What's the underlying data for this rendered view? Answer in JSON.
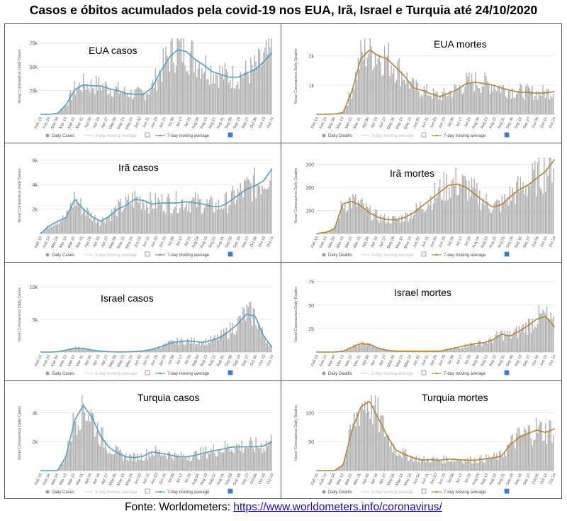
{
  "title": "Casos e óbitos acumulados pela covid-19 nos EUA, Irã, Israel e Turquia até 24/10/2020",
  "source": {
    "prefix": "Fonte: Worldometers: ",
    "link_text": "https://www.worldometers.info/coronavirus/"
  },
  "colors": {
    "bar": "#b0b0b0",
    "cases_line": "#4aa3c8",
    "deaths_line": "#b8862b",
    "axis_text": "#555555",
    "grid": "#e6e6e6"
  },
  "legend": {
    "daily_cases": "Daily Cases",
    "daily_deaths": "Daily Deaths",
    "ma3": "3-day moving average",
    "ma7": "7-day moving average"
  },
  "x_tick_labels": [
    "Feb 15",
    "Feb 24",
    "Mar 04",
    "Mar 13",
    "Mar 22",
    "Mar 31",
    "Apr 09",
    "Apr 18",
    "Apr 27",
    "May 06",
    "May 15",
    "May 24",
    "Jun 02",
    "Jun 11",
    "Jun 20",
    "Jun 29",
    "Jul 08",
    "Jul 17",
    "Jul 26",
    "Aug 04",
    "Aug 13",
    "Aug 22",
    "Aug 31",
    "Sep 09",
    "Sep 18",
    "Sep 27",
    "Oct 06",
    "Oct 15",
    "Oct 24"
  ],
  "chart_data": [
    {
      "type": "bar",
      "title": "EUA casos",
      "ylabel": "Novel Coronavirus Daily Cases",
      "ylim": [
        0,
        80000
      ],
      "y_ticks": [
        "25k",
        "50k",
        "75k"
      ],
      "y_tick_values": [
        25000,
        50000,
        75000
      ],
      "x": [
        "Feb 15",
        "Mar 04",
        "Mar 13",
        "Mar 22",
        "Mar 31",
        "Apr 09",
        "Apr 18",
        "Apr 27",
        "May 06",
        "May 15",
        "May 24",
        "Jun 02",
        "Jun 11",
        "Jun 20",
        "Jun 29",
        "Jul 08",
        "Jul 17",
        "Jul 26",
        "Aug 04",
        "Aug 13",
        "Aug 22",
        "Aug 31",
        "Sep 09",
        "Sep 18",
        "Sep 27",
        "Oct 06",
        "Oct 15",
        "Oct 24"
      ],
      "series": [
        {
          "name": "7-day moving average",
          "values": [
            0,
            0,
            1000,
            10000,
            26000,
            31000,
            30000,
            30000,
            27000,
            25000,
            22000,
            21000,
            21000,
            28000,
            45000,
            60000,
            68000,
            66000,
            58000,
            52000,
            45000,
            42000,
            39000,
            39000,
            43000,
            47000,
            55000,
            65000
          ]
        }
      ]
    },
    {
      "type": "bar",
      "title": "EUA mortes",
      "ylabel": "Novel Coronavirus Daily Deaths",
      "ylim": [
        0,
        2600
      ],
      "y_ticks": [
        "1k",
        "2k"
      ],
      "y_tick_values": [
        1000,
        2000
      ],
      "x": [
        "Feb 15",
        "Mar 04",
        "Mar 13",
        "Mar 22",
        "Mar 31",
        "Apr 09",
        "Apr 18",
        "Apr 27",
        "May 06",
        "May 15",
        "May 24",
        "Jun 02",
        "Jun 11",
        "Jun 20",
        "Jun 29",
        "Jul 08",
        "Jul 17",
        "Jul 26",
        "Aug 04",
        "Aug 13",
        "Aug 22",
        "Aug 31",
        "Sep 09",
        "Sep 18",
        "Sep 27",
        "Oct 06",
        "Oct 15",
        "Oct 24"
      ],
      "series": [
        {
          "name": "7-day moving average",
          "values": [
            0,
            0,
            10,
            60,
            800,
            1900,
            2200,
            2000,
            1900,
            1600,
            1300,
            900,
            820,
            700,
            600,
            720,
            850,
            1050,
            1100,
            1050,
            1000,
            900,
            820,
            760,
            750,
            720,
            730,
            780
          ]
        }
      ]
    },
    {
      "type": "bar",
      "title": "Irã casos",
      "ylabel": "Novel Coronavirus Daily Cases",
      "ylim": [
        0,
        6200
      ],
      "y_ticks": [
        "2k",
        "4k",
        "6k"
      ],
      "y_tick_values": [
        2000,
        4000,
        6000
      ],
      "x": [
        "Feb 15",
        "Mar 04",
        "Mar 13",
        "Mar 22",
        "Mar 31",
        "Apr 09",
        "Apr 18",
        "Apr 27",
        "May 06",
        "May 15",
        "May 24",
        "Jun 02",
        "Jun 11",
        "Jun 20",
        "Jun 29",
        "Jul 08",
        "Jul 17",
        "Jul 26",
        "Aug 04",
        "Aug 13",
        "Aug 22",
        "Aug 31",
        "Sep 09",
        "Sep 18",
        "Sep 27",
        "Oct 06",
        "Oct 15",
        "Oct 24"
      ],
      "series": [
        {
          "name": "7-day moving average",
          "values": [
            0,
            600,
            1000,
            1300,
            2800,
            2000,
            1400,
            1000,
            1400,
            2000,
            2300,
            2800,
            2700,
            2400,
            2500,
            2500,
            2500,
            2600,
            2500,
            2400,
            2200,
            2200,
            2600,
            3100,
            3600,
            3900,
            4300,
            5300
          ]
        }
      ]
    },
    {
      "type": "bar",
      "title": "Irã mortes",
      "ylabel": "Novel Coronavirus Daily Deaths",
      "ylim": [
        0,
        330
      ],
      "y_ticks": [
        "100",
        "200",
        "300"
      ],
      "y_tick_values": [
        100,
        200,
        300
      ],
      "x": [
        "Feb 15",
        "Mar 04",
        "Mar 13",
        "Mar 22",
        "Mar 31",
        "Apr 09",
        "Apr 18",
        "Apr 27",
        "May 06",
        "May 15",
        "May 24",
        "Jun 02",
        "Jun 11",
        "Jun 20",
        "Jun 29",
        "Jul 08",
        "Jul 17",
        "Jul 26",
        "Aug 04",
        "Aug 13",
        "Aug 22",
        "Aug 31",
        "Sep 09",
        "Sep 18",
        "Sep 27",
        "Oct 06",
        "Oct 15",
        "Oct 24"
      ],
      "series": [
        {
          "name": "7-day moving average",
          "values": [
            0,
            5,
            20,
            130,
            140,
            120,
            90,
            70,
            60,
            60,
            70,
            90,
            120,
            150,
            180,
            210,
            215,
            200,
            170,
            140,
            115,
            125,
            160,
            190,
            210,
            240,
            270,
            320
          ]
        }
      ]
    },
    {
      "type": "bar",
      "title": "Israel casos",
      "ylabel": "Novel Coronavirus Daily Cases",
      "ylim": [
        0,
        11500
      ],
      "y_ticks": [
        "5k",
        "10k"
      ],
      "y_tick_values": [
        5000,
        10000
      ],
      "x": [
        "Feb 15",
        "Mar 04",
        "Mar 13",
        "Mar 22",
        "Mar 31",
        "Apr 09",
        "Apr 18",
        "Apr 27",
        "May 06",
        "May 15",
        "May 24",
        "Jun 02",
        "Jun 11",
        "Jun 20",
        "Jun 29",
        "Jul 08",
        "Jul 17",
        "Jul 26",
        "Aug 04",
        "Aug 13",
        "Aug 22",
        "Aug 31",
        "Sep 09",
        "Sep 18",
        "Sep 27",
        "Oct 06",
        "Oct 15",
        "Oct 24"
      ],
      "series": [
        {
          "name": "7-day moving average",
          "values": [
            0,
            0,
            50,
            300,
            600,
            550,
            300,
            150,
            50,
            20,
            20,
            80,
            200,
            400,
            800,
            1300,
            1600,
            1700,
            1600,
            1500,
            1800,
            2300,
            3200,
            4300,
            5800,
            5500,
            2500,
            700
          ]
        }
      ]
    },
    {
      "type": "bar",
      "title": "Israel mortes",
      "ylabel": "Novel Coronavirus Daily Deaths",
      "ylim": [
        0,
        80
      ],
      "y_ticks": [
        "25",
        "50",
        "75"
      ],
      "y_tick_values": [
        25,
        50,
        75
      ],
      "x": [
        "Feb 15",
        "Mar 04",
        "Mar 13",
        "Mar 22",
        "Mar 31",
        "Apr 09",
        "Apr 18",
        "Apr 27",
        "May 06",
        "May 15",
        "May 24",
        "Jun 02",
        "Jun 11",
        "Jun 20",
        "Jun 29",
        "Jul 08",
        "Jul 17",
        "Jul 26",
        "Aug 04",
        "Aug 13",
        "Aug 22",
        "Aug 31",
        "Sep 09",
        "Sep 18",
        "Sep 27",
        "Oct 06",
        "Oct 15",
        "Oct 24"
      ],
      "series": [
        {
          "name": "7-day moving average",
          "values": [
            0,
            0,
            0,
            1,
            5,
            9,
            8,
            4,
            2,
            1,
            1,
            1,
            1,
            1,
            1,
            3,
            5,
            7,
            9,
            10,
            13,
            19,
            17,
            22,
            28,
            35,
            38,
            27
          ]
        }
      ]
    },
    {
      "type": "bar",
      "title": "Turquia casos",
      "ylabel": "Novel Coronavirus Daily Cases",
      "ylim": [
        0,
        5200
      ],
      "y_ticks": [
        "2k",
        "4k"
      ],
      "y_tick_values": [
        2000,
        4000
      ],
      "x": [
        "Feb 15",
        "Mar 04",
        "Mar 13",
        "Mar 22",
        "Mar 31",
        "Apr 09",
        "Apr 18",
        "Apr 27",
        "May 06",
        "May 15",
        "May 24",
        "Jun 02",
        "Jun 11",
        "Jun 20",
        "Jun 29",
        "Jul 08",
        "Jul 17",
        "Jul 26",
        "Aug 04",
        "Aug 13",
        "Aug 22",
        "Aug 31",
        "Sep 09",
        "Sep 18",
        "Sep 27",
        "Oct 06",
        "Oct 15",
        "Oct 24"
      ],
      "series": [
        {
          "name": "7-day moving average",
          "values": [
            0,
            0,
            0,
            1000,
            3500,
            4500,
            3700,
            2400,
            1600,
            1200,
            950,
            900,
            1000,
            1300,
            1200,
            1100,
            950,
            950,
            1050,
            1200,
            1350,
            1450,
            1600,
            1650,
            1650,
            1650,
            1700,
            2000
          ]
        }
      ]
    },
    {
      "type": "bar",
      "title": "Turquia mortes",
      "ylabel": "Novel Coronavirus Daily Deaths",
      "ylim": [
        0,
        130
      ],
      "y_ticks": [
        "50",
        "100"
      ],
      "y_tick_values": [
        50,
        100
      ],
      "x": [
        "Feb 15",
        "Mar 04",
        "Mar 13",
        "Mar 22",
        "Mar 31",
        "Apr 09",
        "Apr 18",
        "Apr 27",
        "May 06",
        "May 15",
        "May 24",
        "Jun 02",
        "Jun 11",
        "Jun 20",
        "Jun 29",
        "Jul 08",
        "Jul 17",
        "Jul 26",
        "Aug 04",
        "Aug 13",
        "Aug 22",
        "Aug 31",
        "Sep 09",
        "Sep 18",
        "Sep 27",
        "Oct 06",
        "Oct 15",
        "Oct 24"
      ],
      "series": [
        {
          "name": "7-day moving average",
          "values": [
            0,
            0,
            0,
            10,
            70,
            110,
            120,
            90,
            60,
            35,
            28,
            22,
            18,
            19,
            18,
            20,
            19,
            18,
            18,
            20,
            22,
            25,
            45,
            57,
            64,
            70,
            66,
            72
          ]
        }
      ]
    }
  ]
}
